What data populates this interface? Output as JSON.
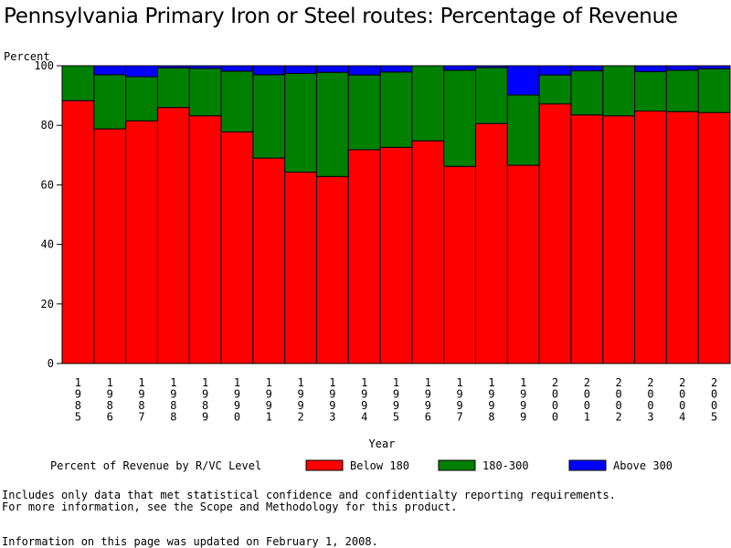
{
  "chart_data": {
    "type": "bar",
    "stacked": true,
    "title": "Pennsylvania Primary Iron or Steel routes: Percentage of Revenue",
    "ylabel": "Percent",
    "xlabel": "Year",
    "ylim": [
      0,
      100
    ],
    "yticks": [
      0,
      20,
      40,
      60,
      80,
      100
    ],
    "categories": [
      "1985",
      "1986",
      "1987",
      "1988",
      "1989",
      "1990",
      "1991",
      "1992",
      "1993",
      "1994",
      "1995",
      "1996",
      "1997",
      "1998",
      "1999",
      "2000",
      "2001",
      "2002",
      "2003",
      "2004",
      "2005"
    ],
    "series": [
      {
        "name": "Below 180",
        "color": "#ff0000",
        "values": [
          88.3,
          78.8,
          81.5,
          86.0,
          83.2,
          77.8,
          69.0,
          64.3,
          62.8,
          71.8,
          72.6,
          74.8,
          66.2,
          80.6,
          66.6,
          87.2,
          83.5,
          83.2,
          84.8,
          84.6,
          84.3
        ]
      },
      {
        "name": "180-300",
        "color": "#008000",
        "values": [
          11.7,
          18.2,
          14.8,
          13.3,
          15.9,
          20.4,
          28.0,
          33.1,
          35.0,
          25.1,
          25.3,
          25.2,
          32.3,
          18.8,
          23.6,
          9.7,
          14.8,
          16.8,
          13.2,
          13.9,
          14.7
        ]
      },
      {
        "name": "Above 300",
        "color": "#0000ff",
        "values": [
          0.0,
          3.0,
          3.7,
          0.7,
          0.9,
          1.8,
          3.0,
          2.6,
          2.2,
          3.1,
          2.1,
          0.0,
          1.5,
          0.6,
          9.8,
          3.1,
          1.7,
          0.0,
          2.0,
          1.5,
          1.0
        ]
      }
    ],
    "legend": {
      "title": "Percent of Revenue by R/VC Level",
      "placement": "bottom"
    }
  },
  "footer": {
    "line1": "Includes only data that met statistical confidence and confidentialty reporting requirements.",
    "line2": "For more information, see the Scope and Methodology for this product.",
    "line3": "Information on this page was updated on February 1, 2008."
  }
}
